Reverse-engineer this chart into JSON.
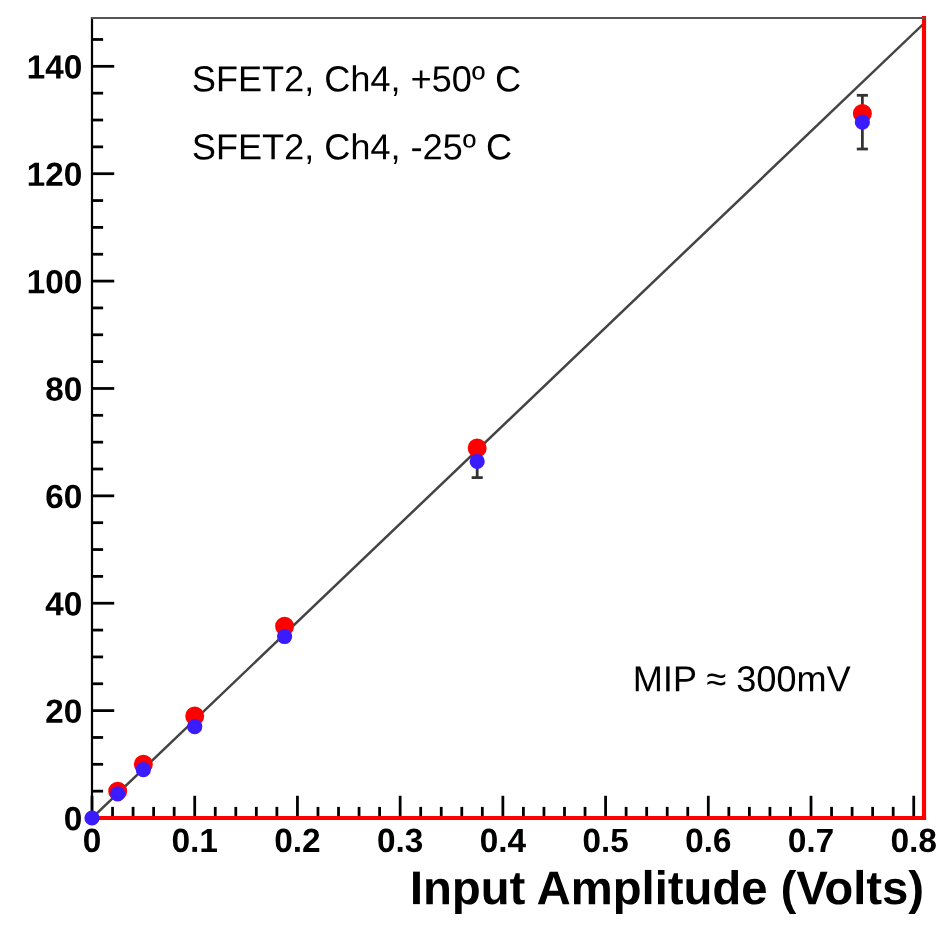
{
  "chart_data": {
    "type": "scatter",
    "xlabel": "Input Amplitude (Volts)",
    "x": [
      0,
      0.025,
      0.05,
      0.1,
      0.1875,
      0.375,
      0.75
    ],
    "series": [
      {
        "color": "#ff0000",
        "values": [
          null,
          5,
          10,
          19,
          35.7,
          68.9,
          131.2
        ]
      },
      {
        "color": "#3a1cff",
        "values": [
          0,
          4.5,
          9,
          17,
          33.8,
          66.4,
          129.6
        ],
        "errors": [
          null,
          null,
          null,
          null,
          null,
          3,
          5
        ]
      },
      {
        "type": "line",
        "marker": "none",
        "color": "#444444",
        "x": [
          0,
          0.81
        ],
        "values": [
          0,
          148
        ]
      }
    ],
    "xlim": [
      0,
      0.81
    ],
    "ylim": [
      0,
      149
    ],
    "xticks": [
      0,
      0.1,
      0.2,
      0.3,
      0.4,
      0.5,
      0.6,
      0.7,
      0.8
    ],
    "yticks": [
      0,
      20,
      40,
      60,
      80,
      100,
      120,
      140
    ],
    "marker": "circle",
    "grid": false,
    "annotations": [
      "SFET2, Ch4, +50º C",
      "SFET2, Ch4, -25º C",
      "MIP ≈ 300mV"
    ]
  }
}
